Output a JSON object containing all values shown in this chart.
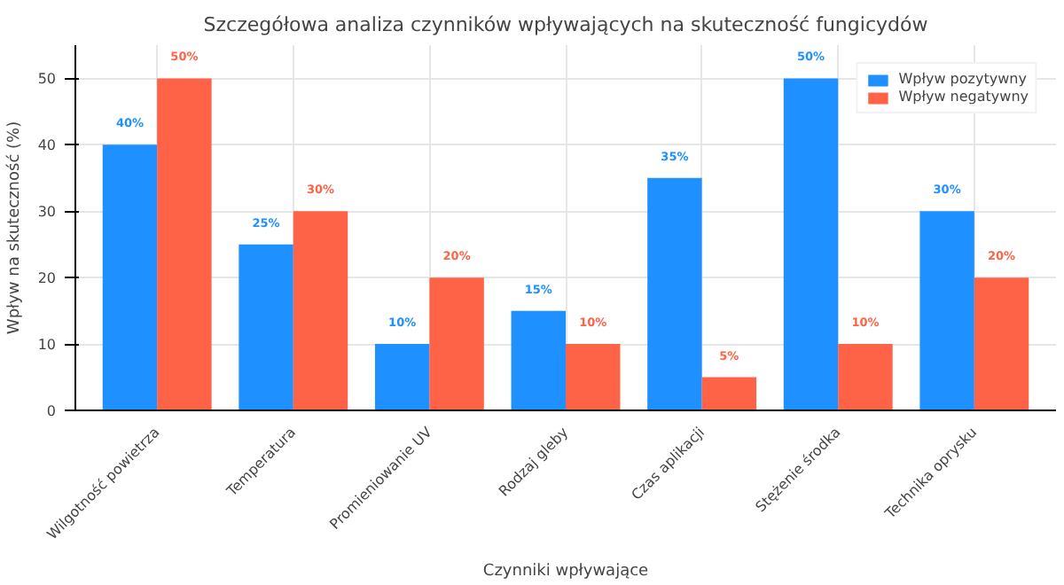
{
  "chart_data": {
    "type": "bar",
    "title": "Szczegółowa analiza czynników wpływających na skuteczność fungicydów",
    "xlabel": "Czynniki wpływające",
    "ylabel": "Wpływ na skuteczność (%)",
    "categories": [
      "Wilgotność powietrza",
      "Temperatura",
      "Promieniowanie UV",
      "Rodzaj gleby",
      "Czas aplikacji",
      "Stężenie środka",
      "Technika oprysku"
    ],
    "series": [
      {
        "name": "Wpływ pozytywny",
        "color": "#1e90ff",
        "values": [
          40,
          25,
          10,
          15,
          35,
          50,
          30
        ],
        "value_labels": [
          "40%",
          "25%",
          "10%",
          "15%",
          "35%",
          "50%",
          "30%"
        ]
      },
      {
        "name": "Wpływ negatywny",
        "color": "#ff6347",
        "values": [
          50,
          30,
          20,
          10,
          5,
          10,
          20
        ],
        "value_labels": [
          "50%",
          "30%",
          "20%",
          "10%",
          "5%",
          "10%",
          "20%"
        ]
      }
    ],
    "ylim": [
      0,
      55
    ],
    "yticks": [
      0,
      10,
      20,
      30,
      40,
      50
    ],
    "grid": true,
    "legend": "top right"
  }
}
